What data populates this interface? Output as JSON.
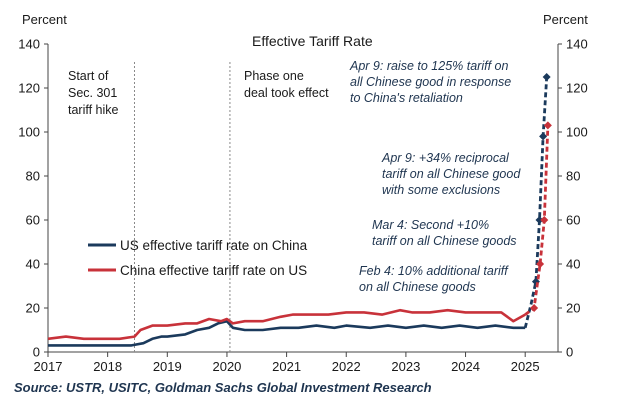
{
  "chart_data": {
    "type": "line",
    "title": "Effective Tariff Rate",
    "ylabel_left": "Percent",
    "ylabel_right": "Percent",
    "ylim": [
      0,
      140
    ],
    "yticks": [
      0,
      20,
      40,
      60,
      80,
      100,
      120,
      140
    ],
    "xlim": [
      2017.0,
      2025.55
    ],
    "xticks": [
      2017,
      2018,
      2019,
      2020,
      2021,
      2022,
      2023,
      2024,
      2025
    ],
    "xticklabels": [
      "2017",
      "2018",
      "2019",
      "2020",
      "2021",
      "2022",
      "2023",
      "2024",
      "2025"
    ],
    "grid": false,
    "legend_position": "center-left",
    "series": [
      {
        "name": "US effective tariff rate on China",
        "color": "#1b3a5c",
        "x": [
          2017.0,
          2017.5,
          2018.0,
          2018.4,
          2018.6,
          2018.75,
          2018.9,
          2019.0,
          2019.3,
          2019.5,
          2019.7,
          2019.85,
          2020.0,
          2020.1,
          2020.3,
          2020.6,
          2020.9,
          2021.2,
          2021.5,
          2021.8,
          2022.0,
          2022.4,
          2022.7,
          2023.0,
          2023.3,
          2023.6,
          2023.9,
          2024.2,
          2024.5,
          2024.8,
          2025.0,
          2025.1,
          2025.18,
          2025.24,
          2025.3,
          2025.36
        ],
        "y": [
          3,
          3,
          3,
          3,
          4,
          6,
          7,
          7,
          8,
          10,
          11,
          13,
          14,
          11,
          10,
          10,
          11,
          11,
          12,
          11,
          12,
          11,
          12,
          11,
          12,
          11,
          12,
          11,
          12,
          11,
          11,
          22,
          32,
          60,
          98,
          125
        ]
      },
      {
        "name": "China effective tariff rate on US",
        "color": "#c8323a",
        "x": [
          2017.0,
          2017.3,
          2017.6,
          2017.9,
          2018.2,
          2018.45,
          2018.55,
          2018.75,
          2019.0,
          2019.3,
          2019.5,
          2019.7,
          2019.9,
          2020.0,
          2020.1,
          2020.3,
          2020.6,
          2020.9,
          2021.1,
          2021.4,
          2021.7,
          2022.0,
          2022.3,
          2022.6,
          2022.9,
          2023.1,
          2023.4,
          2023.7,
          2024.0,
          2024.3,
          2024.6,
          2024.8,
          2025.0,
          2025.15,
          2025.25,
          2025.32,
          2025.38
        ],
        "y": [
          6,
          7,
          6,
          6,
          6,
          7,
          10,
          12,
          12,
          13,
          13,
          15,
          14,
          15,
          13,
          14,
          14,
          16,
          17,
          17,
          17,
          18,
          18,
          17,
          19,
          18,
          18,
          19,
          18,
          18,
          18,
          14,
          17,
          20,
          40,
          60,
          103
        ]
      }
    ],
    "vlines": [
      2018.45,
      2020.05
    ],
    "annotations": {
      "start_301": [
        "Start of",
        "Sec. 301",
        "tariff hike"
      ],
      "phase_one": [
        "Phase one",
        "deal took effect"
      ],
      "apr9_125": [
        "Apr 9: raise to 125% tariff on",
        "all Chinese good in response",
        "to China's retaliation"
      ],
      "apr9_34": [
        "Apr 9: +34% reciprocal",
        "tariff on all Chinese good",
        "with some exclusions"
      ],
      "mar4": [
        "Mar 4: Second +10%",
        "tariff on all Chinese goods"
      ],
      "feb4": [
        "Feb 4: 10% additional tariff",
        "on all Chinese goods"
      ]
    },
    "source": "Source: USTR, USITC, Goldman Sachs Global Investment Research"
  }
}
